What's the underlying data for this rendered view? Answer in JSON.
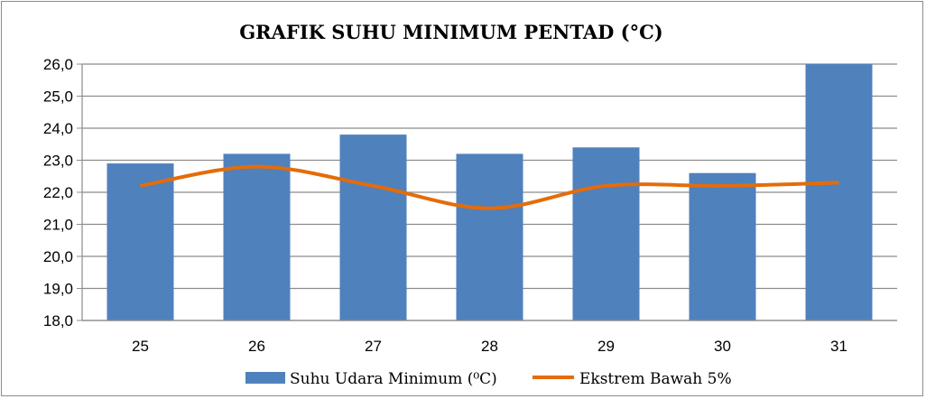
{
  "chart_data": {
    "type": "bar",
    "title": "GRAFIK SUHU MINIMUM PENTAD (°C)",
    "xlabel": "",
    "ylabel": "",
    "categories": [
      "25",
      "26",
      "27",
      "28",
      "29",
      "30",
      "31"
    ],
    "ylim": [
      18.0,
      26.0
    ],
    "yticks": [
      "18,0",
      "19,0",
      "20,0",
      "21,0",
      "22,0",
      "23,0",
      "24,0",
      "25,0",
      "26,0"
    ],
    "grid": true,
    "legend_position": "bottom",
    "series": [
      {
        "name": "Suhu Udara Minimum (⁰C)",
        "type": "bar",
        "color": "#4f81bd",
        "values": [
          22.9,
          23.2,
          23.8,
          23.2,
          23.4,
          22.6,
          26.0
        ]
      },
      {
        "name": "Ekstrem Bawah  5%",
        "type": "line",
        "color": "#e46c0a",
        "values": [
          22.2,
          22.8,
          22.2,
          21.5,
          22.2,
          22.2,
          22.3
        ]
      }
    ]
  }
}
